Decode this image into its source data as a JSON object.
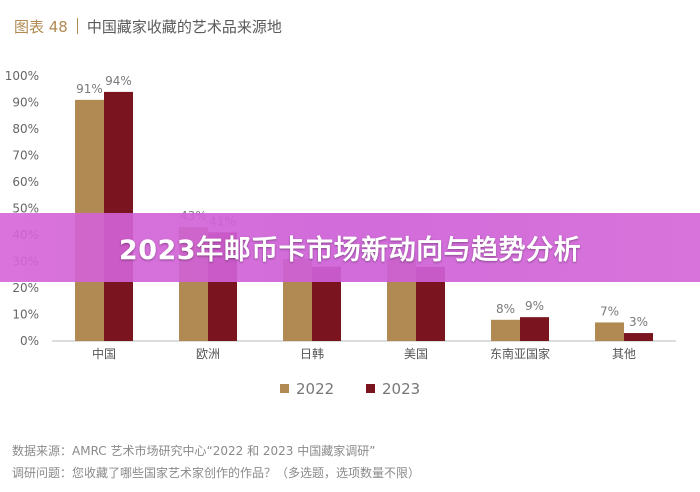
{
  "header": {
    "figure_number": "图表 48",
    "title": "中国藏家收藏的艺术品来源地"
  },
  "banner": {
    "title": "2023年邮币卡市场新动向与趋势分析"
  },
  "footer": {
    "source": "数据来源：AMRC 艺术市场研究中心“2022 和 2023 中国藏家调研”",
    "question": "调研问题：您收藏了哪些国家艺术家创作的作品？（多选题，选项数量不限）"
  },
  "colors": {
    "series_2022": "#b08a52",
    "series_2023": "#7a1520"
  },
  "chart_data": {
    "type": "bar",
    "categories": [
      "中国",
      "欧洲",
      "日韩",
      "美国",
      "东南亚国家",
      "其他"
    ],
    "series": [
      {
        "name": "2022",
        "values": [
          91,
          43,
          31,
          31,
          8,
          7
        ],
        "labels": [
          "91%",
          "43%",
          "",
          "",
          "8%",
          "7%"
        ]
      },
      {
        "name": "2023",
        "values": [
          94,
          41,
          28,
          28,
          9,
          3
        ],
        "labels": [
          "94%",
          "41%",
          "",
          "",
          "9%",
          "3%"
        ]
      }
    ],
    "ylim": [
      0,
      100
    ],
    "yticks": [
      "0%",
      "10%",
      "20%",
      "30%",
      "40%",
      "50%",
      "60%",
      "70%",
      "80%",
      "90%",
      "100%"
    ],
    "legend_position": "bottom-center",
    "grid": false
  }
}
